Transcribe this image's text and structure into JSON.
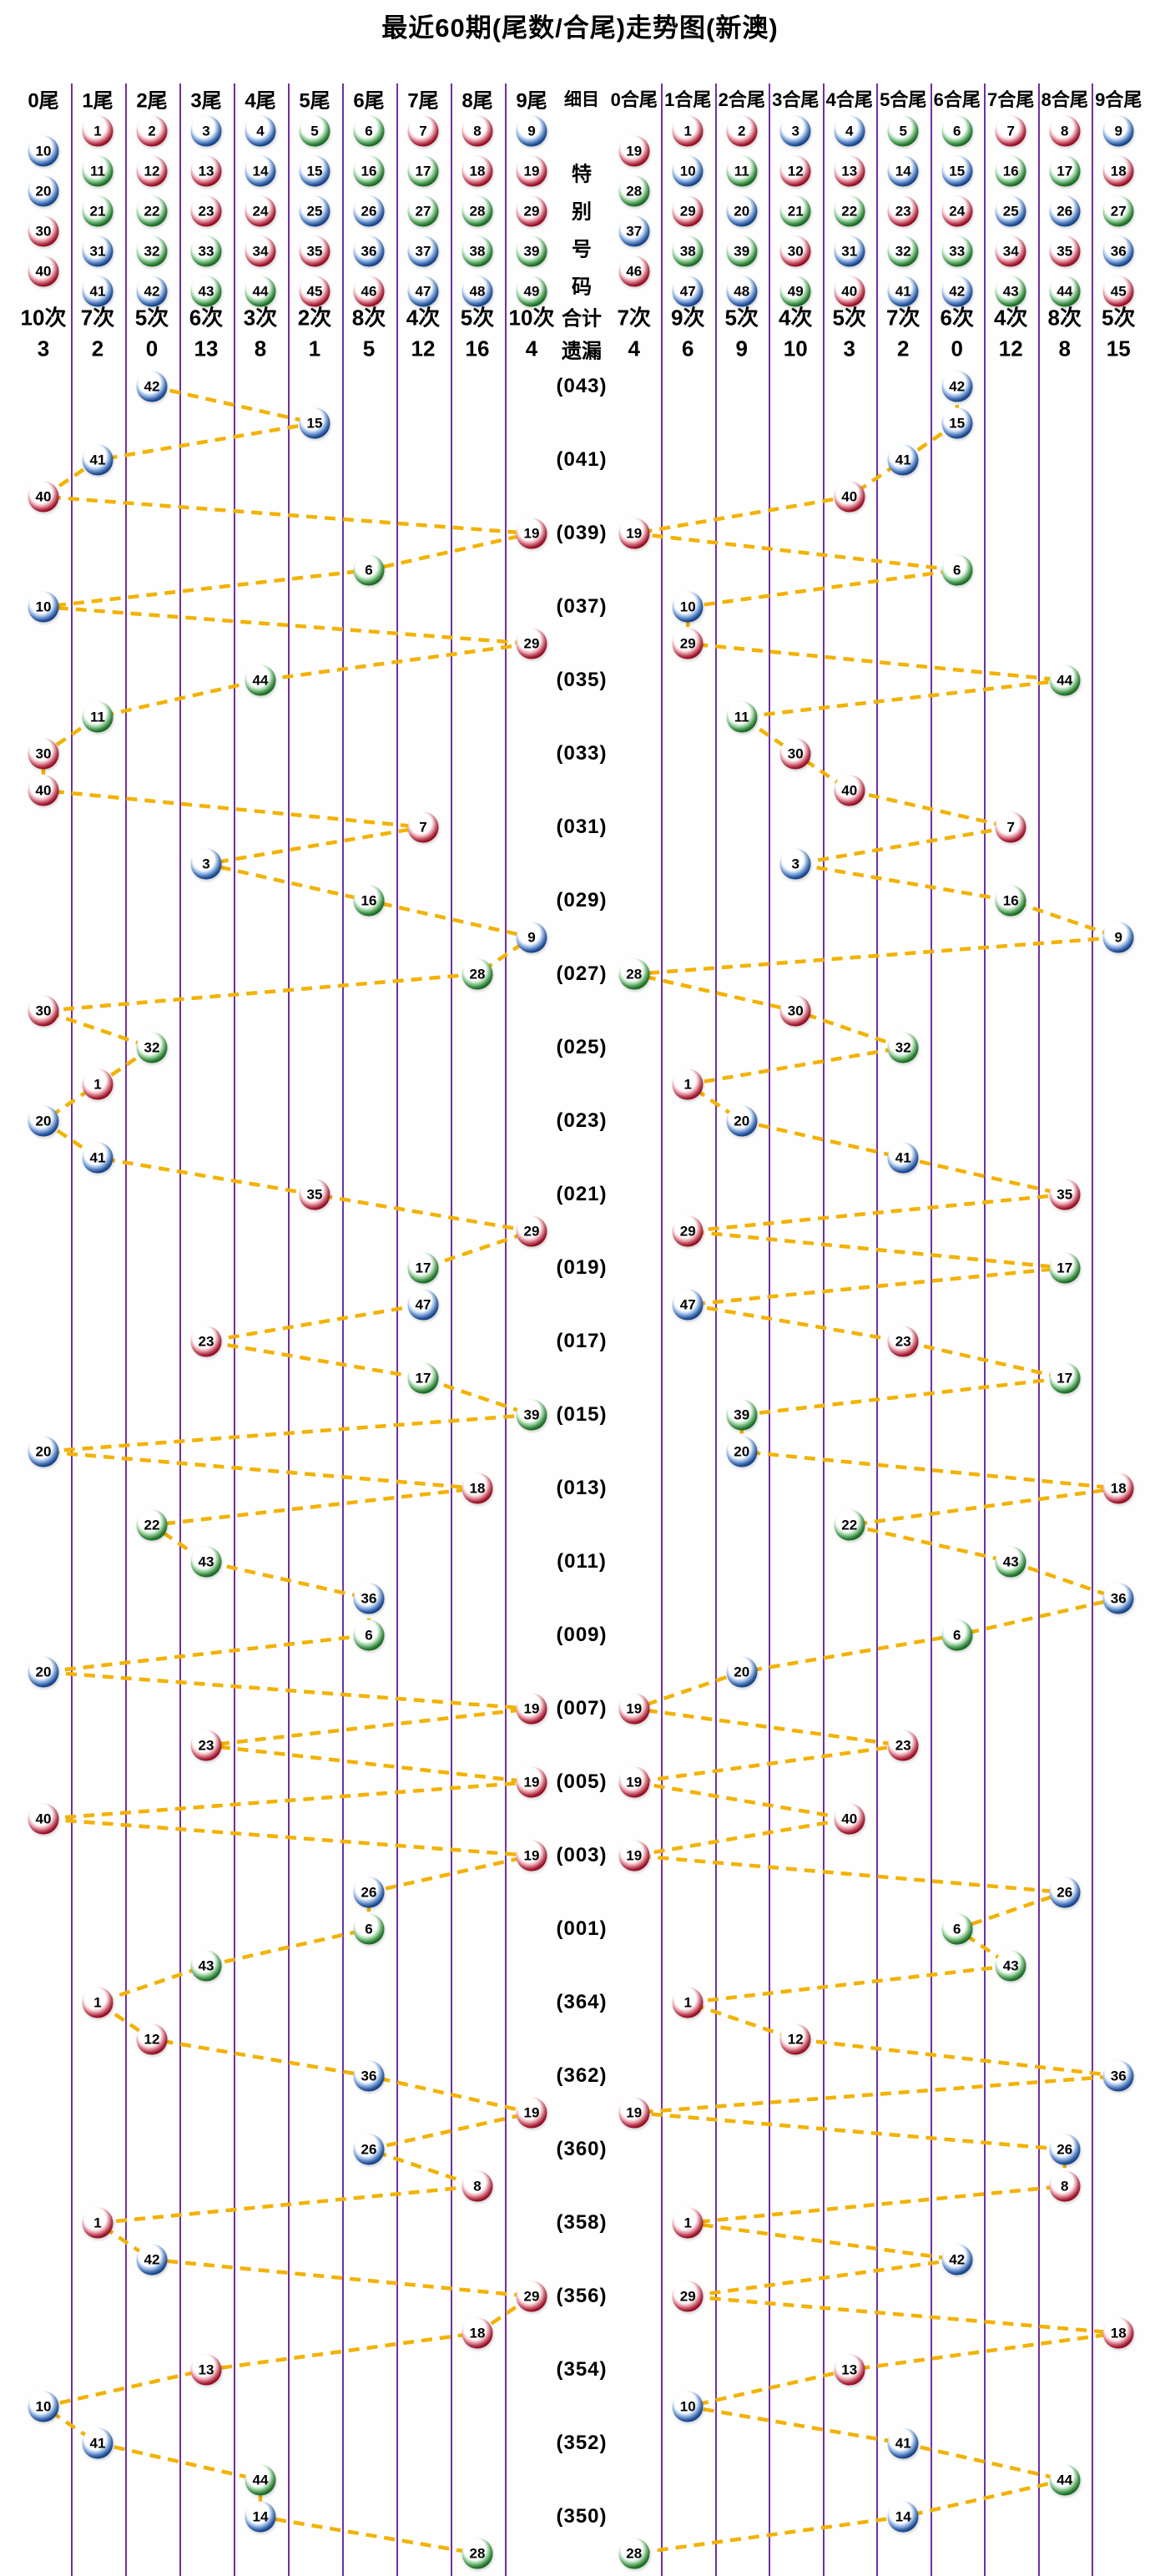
{
  "title": "最近60期(尾数/合尾)走势图(新澳)",
  "colors": {
    "grid_line": "#7030a0",
    "trend_line": "#f2b200",
    "ball_red": "#d01030",
    "ball_blue": "#1d5cc0",
    "ball_green": "#21942e",
    "text": "#000000"
  },
  "ball_color_map": {
    "red": [
      1,
      2,
      7,
      8,
      12,
      13,
      18,
      19,
      23,
      24,
      29,
      30,
      34,
      35,
      40,
      45,
      46
    ],
    "blue": [
      3,
      4,
      9,
      10,
      14,
      15,
      20,
      25,
      26,
      31,
      36,
      37,
      41,
      42,
      47,
      48
    ],
    "green": [
      5,
      6,
      11,
      16,
      17,
      21,
      22,
      27,
      28,
      32,
      33,
      38,
      39,
      43,
      44,
      49
    ]
  },
  "detail_column": {
    "header": "细目",
    "special_label": "特别号码",
    "total_label": "合计",
    "miss_label": "遗漏"
  },
  "left_section": {
    "columns": [
      {
        "header": "0尾",
        "balls": [
          10,
          20,
          30,
          40
        ],
        "count": "10次",
        "miss": "3"
      },
      {
        "header": "1尾",
        "balls": [
          1,
          11,
          21,
          31,
          41
        ],
        "count": "7次",
        "miss": "2"
      },
      {
        "header": "2尾",
        "balls": [
          2,
          12,
          22,
          32,
          42
        ],
        "count": "5次",
        "miss": "0"
      },
      {
        "header": "3尾",
        "balls": [
          3,
          13,
          23,
          33,
          43
        ],
        "count": "6次",
        "miss": "13"
      },
      {
        "header": "4尾",
        "balls": [
          4,
          14,
          24,
          34,
          44
        ],
        "count": "3次",
        "miss": "8"
      },
      {
        "header": "5尾",
        "balls": [
          5,
          15,
          25,
          35,
          45
        ],
        "count": "2次",
        "miss": "1"
      },
      {
        "header": "6尾",
        "balls": [
          6,
          16,
          26,
          36,
          46
        ],
        "count": "8次",
        "miss": "5"
      },
      {
        "header": "7尾",
        "balls": [
          7,
          17,
          27,
          37,
          47
        ],
        "count": "4次",
        "miss": "12"
      },
      {
        "header": "8尾",
        "balls": [
          8,
          18,
          28,
          38,
          48
        ],
        "count": "5次",
        "miss": "16"
      },
      {
        "header": "9尾",
        "balls": [
          9,
          19,
          29,
          39,
          49
        ],
        "count": "10次",
        "miss": "4"
      }
    ]
  },
  "right_section": {
    "columns": [
      {
        "header": "0合尾",
        "balls": [
          19,
          28,
          37,
          46
        ],
        "count": "7次",
        "miss": "4"
      },
      {
        "header": "1合尾",
        "balls": [
          1,
          10,
          29,
          38,
          47
        ],
        "count": "9次",
        "miss": "6"
      },
      {
        "header": "2合尾",
        "balls": [
          2,
          11,
          20,
          39,
          48
        ],
        "count": "5次",
        "miss": "9"
      },
      {
        "header": "3合尾",
        "balls": [
          3,
          12,
          21,
          30,
          49
        ],
        "count": "4次",
        "miss": "10"
      },
      {
        "header": "4合尾",
        "balls": [
          4,
          13,
          22,
          31,
          40
        ],
        "count": "5次",
        "miss": "3"
      },
      {
        "header": "5合尾",
        "balls": [
          5,
          14,
          23,
          32,
          41
        ],
        "count": "7次",
        "miss": "2"
      },
      {
        "header": "6合尾",
        "balls": [
          6,
          15,
          24,
          33,
          42
        ],
        "count": "6次",
        "miss": "0"
      },
      {
        "header": "7合尾",
        "balls": [
          7,
          16,
          25,
          34,
          43
        ],
        "count": "4次",
        "miss": "12"
      },
      {
        "header": "8合尾",
        "balls": [
          8,
          17,
          26,
          35,
          44
        ],
        "count": "8次",
        "miss": "8"
      },
      {
        "header": "9合尾",
        "balls": [
          9,
          18,
          27,
          36,
          45
        ],
        "count": "5次",
        "miss": "15"
      }
    ]
  },
  "chart_data": {
    "type": "scatter",
    "title": "最近60期(尾数/合尾)走势图(新澳)",
    "left_axis_categories": [
      "0尾",
      "1尾",
      "2尾",
      "3尾",
      "4尾",
      "5尾",
      "6尾",
      "7尾",
      "8尾",
      "9尾"
    ],
    "right_axis_categories": [
      "0合尾",
      "1合尾",
      "2合尾",
      "3合尾",
      "4合尾",
      "5合尾",
      "6合尾",
      "7合尾",
      "8合尾",
      "9合尾"
    ],
    "grid": true,
    "rows": [
      {
        "period": "(043)",
        "value": 42,
        "tail": 2,
        "sum_tail": 6
      },
      {
        "period": "",
        "value": 15,
        "tail": 5,
        "sum_tail": 6
      },
      {
        "period": "(041)",
        "value": 41,
        "tail": 1,
        "sum_tail": 5
      },
      {
        "period": "",
        "value": 40,
        "tail": 0,
        "sum_tail": 4
      },
      {
        "period": "(039)",
        "value": 19,
        "tail": 9,
        "sum_tail": 0
      },
      {
        "period": "",
        "value": 6,
        "tail": 6,
        "sum_tail": 6
      },
      {
        "period": "(037)",
        "value": 10,
        "tail": 0,
        "sum_tail": 1
      },
      {
        "period": "",
        "value": 29,
        "tail": 9,
        "sum_tail": 1
      },
      {
        "period": "(035)",
        "value": 44,
        "tail": 4,
        "sum_tail": 8
      },
      {
        "period": "",
        "value": 11,
        "tail": 1,
        "sum_tail": 2
      },
      {
        "period": "(033)",
        "value": 30,
        "tail": 0,
        "sum_tail": 3
      },
      {
        "period": "",
        "value": 40,
        "tail": 0,
        "sum_tail": 4
      },
      {
        "period": "(031)",
        "value": 7,
        "tail": 7,
        "sum_tail": 7
      },
      {
        "period": "",
        "value": 3,
        "tail": 3,
        "sum_tail": 3
      },
      {
        "period": "(029)",
        "value": 16,
        "tail": 6,
        "sum_tail": 7
      },
      {
        "period": "",
        "value": 9,
        "tail": 9,
        "sum_tail": 9
      },
      {
        "period": "(027)",
        "value": 28,
        "tail": 8,
        "sum_tail": 0
      },
      {
        "period": "",
        "value": 30,
        "tail": 0,
        "sum_tail": 3
      },
      {
        "period": "(025)",
        "value": 32,
        "tail": 2,
        "sum_tail": 5
      },
      {
        "period": "",
        "value": 1,
        "tail": 1,
        "sum_tail": 1
      },
      {
        "period": "(023)",
        "value": 20,
        "tail": 0,
        "sum_tail": 2
      },
      {
        "period": "",
        "value": 41,
        "tail": 1,
        "sum_tail": 5
      },
      {
        "period": "(021)",
        "value": 35,
        "tail": 5,
        "sum_tail": 8
      },
      {
        "period": "",
        "value": 29,
        "tail": 9,
        "sum_tail": 1
      },
      {
        "period": "(019)",
        "value": 17,
        "tail": 7,
        "sum_tail": 8
      },
      {
        "period": "",
        "value": 47,
        "tail": 7,
        "sum_tail": 1
      },
      {
        "period": "(017)",
        "value": 23,
        "tail": 3,
        "sum_tail": 5
      },
      {
        "period": "",
        "value": 17,
        "tail": 7,
        "sum_tail": 8
      },
      {
        "period": "(015)",
        "value": 39,
        "tail": 9,
        "sum_tail": 2
      },
      {
        "period": "",
        "value": 20,
        "tail": 0,
        "sum_tail": 2
      },
      {
        "period": "(013)",
        "value": 18,
        "tail": 8,
        "sum_tail": 9
      },
      {
        "period": "",
        "value": 22,
        "tail": 2,
        "sum_tail": 4
      },
      {
        "period": "(011)",
        "value": 43,
        "tail": 3,
        "sum_tail": 7
      },
      {
        "period": "",
        "value": 36,
        "tail": 6,
        "sum_tail": 9
      },
      {
        "period": "(009)",
        "value": 6,
        "tail": 6,
        "sum_tail": 6
      },
      {
        "period": "",
        "value": 20,
        "tail": 0,
        "sum_tail": 2
      },
      {
        "period": "(007)",
        "value": 19,
        "tail": 9,
        "sum_tail": 0
      },
      {
        "period": "",
        "value": 23,
        "tail": 3,
        "sum_tail": 5
      },
      {
        "period": "(005)",
        "value": 19,
        "tail": 9,
        "sum_tail": 0
      },
      {
        "period": "",
        "value": 40,
        "tail": 0,
        "sum_tail": 4
      },
      {
        "period": "(003)",
        "value": 19,
        "tail": 9,
        "sum_tail": 0
      },
      {
        "period": "",
        "value": 26,
        "tail": 6,
        "sum_tail": 8
      },
      {
        "period": "(001)",
        "value": 6,
        "tail": 6,
        "sum_tail": 6
      },
      {
        "period": "",
        "value": 43,
        "tail": 3,
        "sum_tail": 7
      },
      {
        "period": "(364)",
        "value": 1,
        "tail": 1,
        "sum_tail": 1
      },
      {
        "period": "",
        "value": 12,
        "tail": 2,
        "sum_tail": 3
      },
      {
        "period": "(362)",
        "value": 36,
        "tail": 6,
        "sum_tail": 9
      },
      {
        "period": "",
        "value": 19,
        "tail": 9,
        "sum_tail": 0
      },
      {
        "period": "(360)",
        "value": 26,
        "tail": 6,
        "sum_tail": 8
      },
      {
        "period": "",
        "value": 8,
        "tail": 8,
        "sum_tail": 8
      },
      {
        "period": "(358)",
        "value": 1,
        "tail": 1,
        "sum_tail": 1
      },
      {
        "period": "",
        "value": 42,
        "tail": 2,
        "sum_tail": 6
      },
      {
        "period": "(356)",
        "value": 29,
        "tail": 9,
        "sum_tail": 1
      },
      {
        "period": "",
        "value": 18,
        "tail": 8,
        "sum_tail": 9
      },
      {
        "period": "(354)",
        "value": 13,
        "tail": 3,
        "sum_tail": 4
      },
      {
        "period": "",
        "value": 10,
        "tail": 0,
        "sum_tail": 1
      },
      {
        "period": "(352)",
        "value": 41,
        "tail": 1,
        "sum_tail": 5
      },
      {
        "period": "",
        "value": 44,
        "tail": 4,
        "sum_tail": 8
      },
      {
        "period": "(350)",
        "value": 14,
        "tail": 4,
        "sum_tail": 5
      },
      {
        "period": "",
        "value": 28,
        "tail": 8,
        "sum_tail": 0
      }
    ]
  }
}
